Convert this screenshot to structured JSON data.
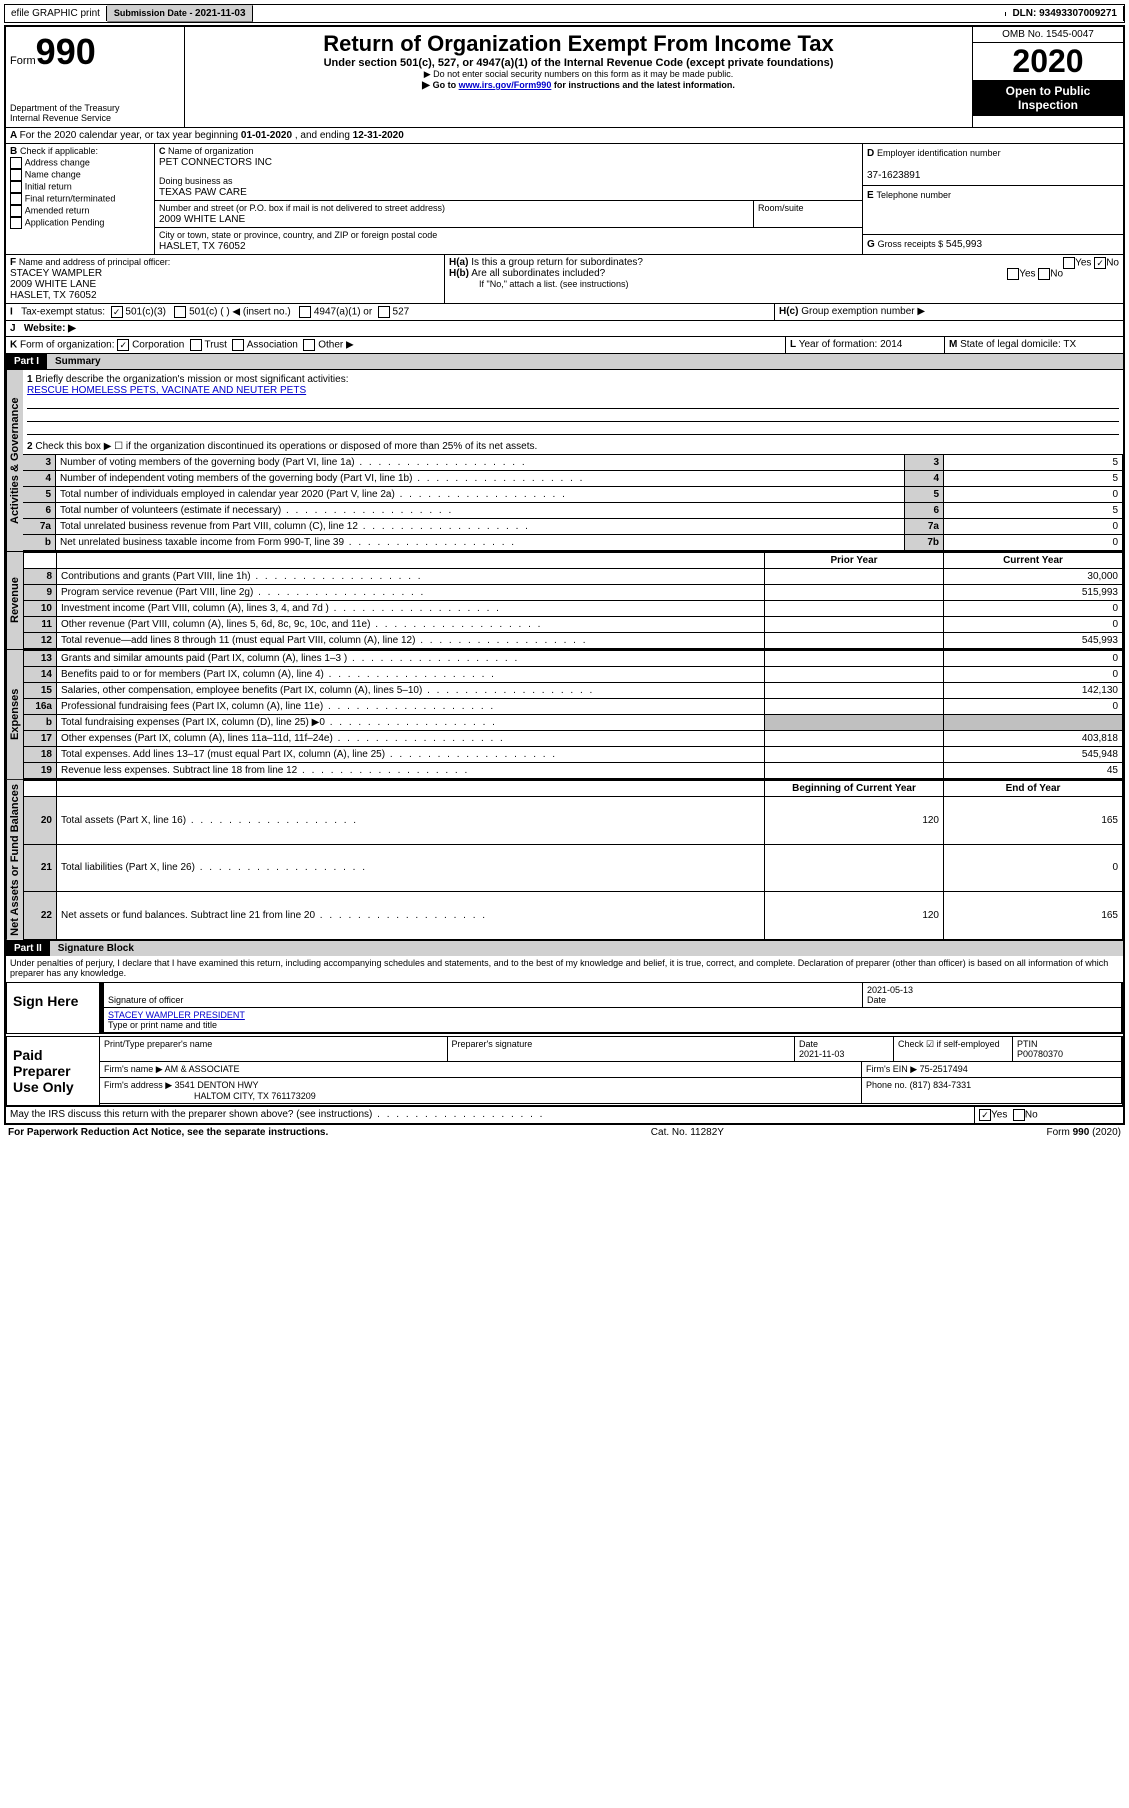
{
  "topbar": {
    "efile": "efile GRAPHIC print",
    "sub_label": "Submission Date - ",
    "sub_date": "2021-11-03",
    "dln_label": "DLN: ",
    "dln": "93493307009271"
  },
  "header": {
    "form_word": "Form",
    "form_no": "990",
    "dept1": "Department of the Treasury",
    "dept2": "Internal Revenue Service",
    "title": "Return of Organization Exempt From Income Tax",
    "sub1": "Under section 501(c), 527, or 4947(a)(1) of the Internal Revenue Code (except private foundations)",
    "sub2": "Do not enter social security numbers on this form as it may be made public.",
    "sub3a": "Go to ",
    "sub3link": "www.irs.gov/Form990",
    "sub3b": " for instructions and the latest information.",
    "omb": "OMB No. 1545-0047",
    "year": "2020",
    "open": "Open to Public Inspection"
  },
  "A": {
    "text": "For the 2020 calendar year, or tax year beginning ",
    "begin": "01-01-2020",
    "mid": " , and ending ",
    "end": "12-31-2020"
  },
  "B": {
    "label": "Check if applicable:",
    "opts": [
      "Address change",
      "Name change",
      "Initial return",
      "Final return/terminated",
      "Amended return",
      "Application Pending"
    ]
  },
  "C": {
    "name_label": "Name of organization",
    "name": "PET CONNECTORS INC",
    "dba_label": "Doing business as",
    "dba": "TEXAS PAW CARE",
    "street_label": "Number and street (or P.O. box if mail is not delivered to street address)",
    "room_label": "Room/suite",
    "street": "2009 WHITE LANE",
    "city_label": "City or town, state or province, country, and ZIP or foreign postal code",
    "city": "HASLET, TX  76052"
  },
  "D": {
    "label": "Employer identification number",
    "val": "37-1623891"
  },
  "E": {
    "label": "Telephone number",
    "val": ""
  },
  "G": {
    "label": "Gross receipts $",
    "val": "545,993"
  },
  "F": {
    "label": "Name and address of principal officer:",
    "name": "STACEY WAMPLER",
    "street": "2009 WHITE LANE",
    "city": "HASLET, TX  76052"
  },
  "H": {
    "a": "Is this a group return for subordinates?",
    "b": "Are all subordinates included?",
    "b_note": "If \"No,\" attach a list. (see instructions)",
    "c": "Group exemption number ▶",
    "yes": "Yes",
    "no": "No"
  },
  "I": {
    "label": "Tax-exempt status:",
    "o1": "501(c)(3)",
    "o2": "501(c) (  ) ◀ (insert no.)",
    "o3": "4947(a)(1) or",
    "o4": "527"
  },
  "J": {
    "label": "Website: ▶"
  },
  "K": {
    "label": "Form of organization:",
    "o1": "Corporation",
    "o2": "Trust",
    "o3": "Association",
    "o4": "Other ▶"
  },
  "L": {
    "label": "Year of formation:",
    "val": "2014"
  },
  "M": {
    "label": "State of legal domicile:",
    "val": "TX"
  },
  "part1": {
    "hdr": "Part I",
    "title": "Summary",
    "l1": "Briefly describe the organization's mission or most significant activities:",
    "mission": "RESCUE HOMELESS PETS, VACINATE AND NEUTER PETS",
    "l2": "Check this box ▶ ☐  if the organization discontinued its operations or disposed of more than 25% of its net assets.",
    "rows_gov": [
      {
        "n": "3",
        "t": "Number of voting members of the governing body (Part VI, line 1a)",
        "box": "3",
        "v": "5"
      },
      {
        "n": "4",
        "t": "Number of independent voting members of the governing body (Part VI, line 1b)",
        "box": "4",
        "v": "5"
      },
      {
        "n": "5",
        "t": "Total number of individuals employed in calendar year 2020 (Part V, line 2a)",
        "box": "5",
        "v": "0"
      },
      {
        "n": "6",
        "t": "Total number of volunteers (estimate if necessary)",
        "box": "6",
        "v": "5"
      },
      {
        "n": "7a",
        "t": "Total unrelated business revenue from Part VIII, column (C), line 12",
        "box": "7a",
        "v": "0"
      },
      {
        "n": "b",
        "t": "Net unrelated business taxable income from Form 990-T, line 39",
        "box": "7b",
        "v": "0"
      }
    ],
    "col_prior": "Prior Year",
    "col_curr": "Current Year",
    "rev": [
      {
        "n": "8",
        "t": "Contributions and grants (Part VIII, line 1h)",
        "p": "",
        "c": "30,000"
      },
      {
        "n": "9",
        "t": "Program service revenue (Part VIII, line 2g)",
        "p": "",
        "c": "515,993"
      },
      {
        "n": "10",
        "t": "Investment income (Part VIII, column (A), lines 3, 4, and 7d )",
        "p": "",
        "c": "0"
      },
      {
        "n": "11",
        "t": "Other revenue (Part VIII, column (A), lines 5, 6d, 8c, 9c, 10c, and 11e)",
        "p": "",
        "c": "0"
      },
      {
        "n": "12",
        "t": "Total revenue—add lines 8 through 11 (must equal Part VIII, column (A), line 12)",
        "p": "",
        "c": "545,993"
      }
    ],
    "exp": [
      {
        "n": "13",
        "t": "Grants and similar amounts paid (Part IX, column (A), lines 1–3 )",
        "p": "",
        "c": "0"
      },
      {
        "n": "14",
        "t": "Benefits paid to or for members (Part IX, column (A), line 4)",
        "p": "",
        "c": "0"
      },
      {
        "n": "15",
        "t": "Salaries, other compensation, employee benefits (Part IX, column (A), lines 5–10)",
        "p": "",
        "c": "142,130"
      },
      {
        "n": "16a",
        "t": "Professional fundraising fees (Part IX, column (A), line 11e)",
        "p": "",
        "c": "0"
      },
      {
        "n": "b",
        "t": "Total fundraising expenses (Part IX, column (D), line 25) ▶0",
        "p": "GREY",
        "c": "GREY"
      },
      {
        "n": "17",
        "t": "Other expenses (Part IX, column (A), lines 11a–11d, 11f–24e)",
        "p": "",
        "c": "403,818"
      },
      {
        "n": "18",
        "t": "Total expenses. Add lines 13–17 (must equal Part IX, column (A), line 25)",
        "p": "",
        "c": "545,948"
      },
      {
        "n": "19",
        "t": "Revenue less expenses. Subtract line 18 from line 12",
        "p": "",
        "c": "45"
      }
    ],
    "col_begin": "Beginning of Current Year",
    "col_end": "End of Year",
    "net": [
      {
        "n": "20",
        "t": "Total assets (Part X, line 16)",
        "p": "120",
        "c": "165"
      },
      {
        "n": "21",
        "t": "Total liabilities (Part X, line 26)",
        "p": "",
        "c": "0"
      },
      {
        "n": "22",
        "t": "Net assets or fund balances. Subtract line 21 from line 20",
        "p": "120",
        "c": "165"
      }
    ],
    "tabs": {
      "gov": "Activities & Governance",
      "rev": "Revenue",
      "exp": "Expenses",
      "net": "Net Assets or Fund Balances"
    }
  },
  "part2": {
    "hdr": "Part II",
    "title": "Signature Block",
    "decl": "Under penalties of perjury, I declare that I have examined this return, including accompanying schedules and statements, and to the best of my knowledge and belief, it is true, correct, and complete. Declaration of preparer (other than officer) is based on all information of which preparer has any knowledge.",
    "sign_here": "Sign Here",
    "sig_officer": "Signature of officer",
    "date": "Date",
    "date_val": "2021-05-13",
    "name_title": "STACEY WAMPLER  PRESIDENT",
    "name_label": "Type or print name and title",
    "paid": "Paid Preparer Use Only",
    "prep_name": "Print/Type preparer's name",
    "prep_sig": "Preparer's signature",
    "prep_date": "Date",
    "prep_date_val": "2021-11-03",
    "check_self": "Check ☑ if self-employed",
    "ptin": "PTIN",
    "ptin_val": "P00780370",
    "firm_name_l": "Firm's name  ▶",
    "firm_name": "AM & ASSOCIATE",
    "firm_ein_l": "Firm's EIN ▶",
    "firm_ein": "75-2517494",
    "firm_addr_l": "Firm's address ▶",
    "firm_addr": "3541 DENTON HWY",
    "firm_city": "HALTOM CITY, TX  761173209",
    "phone_l": "Phone no.",
    "phone": "(817) 834-7331",
    "discuss": "May the IRS discuss this return with the preparer shown above? (see instructions)",
    "yes": "Yes",
    "no": "No"
  },
  "footer": {
    "left": "For Paperwork Reduction Act Notice, see the separate instructions.",
    "mid": "Cat. No. 11282Y",
    "right": "Form 990 (2020)"
  }
}
